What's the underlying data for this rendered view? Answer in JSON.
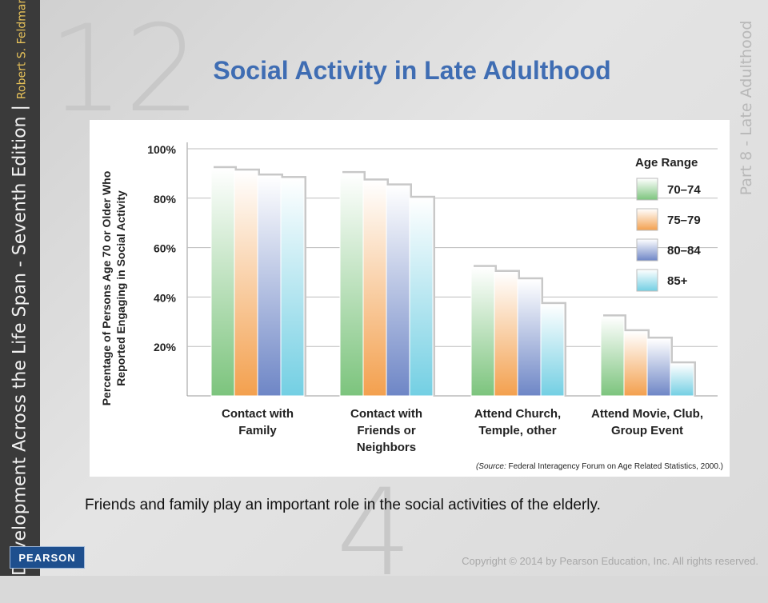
{
  "slide": {
    "title": "Social Activity in Late Adulthood",
    "caption": "Friends and family play an important role in the social activities of the elderly.",
    "side_title": "Development Across the Life Span - Seventh Edition",
    "side_separator": "|",
    "side_author": "Robert S. Feldman",
    "right_label": "Part 8 - Late Adulthood",
    "publisher": "PEARSON",
    "copyright": "Copyright © 2014 by Pearson Education, Inc. All rights reserved.",
    "ghost_numbers": [
      "12",
      "4"
    ]
  },
  "chart_data": {
    "type": "bar",
    "ylabel_lines": [
      "Percentage of Persons Age 70 or Older Who",
      "Reported Engaging in Social Activity"
    ],
    "ylim": [
      0,
      100
    ],
    "yticks": [
      20,
      40,
      60,
      80,
      100
    ],
    "ytick_labels": [
      "20%",
      "40%",
      "60%",
      "80%",
      "100%"
    ],
    "grid": true,
    "legend_title": "Age Range",
    "legend_position": "top-right",
    "categories": [
      [
        "Contact with",
        "Family"
      ],
      [
        "Contact with",
        "Friends or",
        "Neighbors"
      ],
      [
        "Attend Church,",
        "Temple, other"
      ],
      [
        "Attend Movie, Club,",
        "Group Event"
      ]
    ],
    "series": [
      {
        "name": "70–74",
        "color": "#7cc47d",
        "values": [
          92,
          90,
          52,
          32
        ]
      },
      {
        "name": "75–79",
        "color": "#f3a04e",
        "values": [
          91,
          87,
          50,
          26
        ]
      },
      {
        "name": "80–84",
        "color": "#6e86c6",
        "values": [
          89,
          85,
          47,
          23
        ]
      },
      {
        "name": "85+",
        "color": "#73cfe3",
        "values": [
          88,
          80,
          37,
          13
        ]
      }
    ],
    "source_prefix": "(Source:",
    "source_text": "Federal Interagency Forum on Age Related Statistics, 2000.)"
  }
}
